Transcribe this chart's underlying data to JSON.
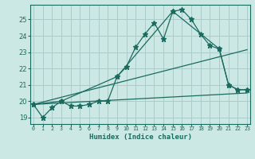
{
  "xlabel": "Humidex (Indice chaleur)",
  "background_color": "#cce8e5",
  "grid_color": "#aaccca",
  "line_color": "#1a6b5e",
  "x_ticks": [
    0,
    1,
    2,
    3,
    4,
    5,
    6,
    7,
    8,
    9,
    10,
    11,
    12,
    13,
    14,
    15,
    16,
    17,
    18,
    19,
    20,
    21,
    22,
    23
  ],
  "y_ticks": [
    19,
    20,
    21,
    22,
    23,
    24,
    25
  ],
  "ylim": [
    18.6,
    25.9
  ],
  "xlim": [
    -0.3,
    23.3
  ],
  "series1": {
    "x": [
      0,
      1,
      2,
      3,
      4,
      5,
      6,
      7,
      8,
      9,
      10,
      11,
      12,
      13,
      14,
      15,
      16,
      17,
      18,
      19,
      20,
      21,
      22,
      23
    ],
    "y": [
      19.8,
      19.0,
      19.6,
      20.0,
      19.7,
      19.7,
      19.8,
      20.0,
      20.0,
      21.5,
      22.1,
      23.3,
      24.1,
      24.8,
      23.8,
      25.5,
      25.6,
      25.0,
      24.1,
      23.4,
      23.2,
      21.0,
      20.7,
      20.7
    ]
  },
  "series2": {
    "x": [
      0,
      3,
      9,
      15,
      20,
      21,
      22,
      23
    ],
    "y": [
      19.8,
      20.0,
      21.5,
      25.5,
      23.2,
      21.0,
      20.7,
      20.7
    ]
  },
  "series3_linear": {
    "x": [
      0,
      23
    ],
    "y": [
      19.8,
      20.5
    ]
  },
  "series4_linear": {
    "x": [
      0,
      23
    ],
    "y": [
      19.8,
      23.15
    ]
  }
}
